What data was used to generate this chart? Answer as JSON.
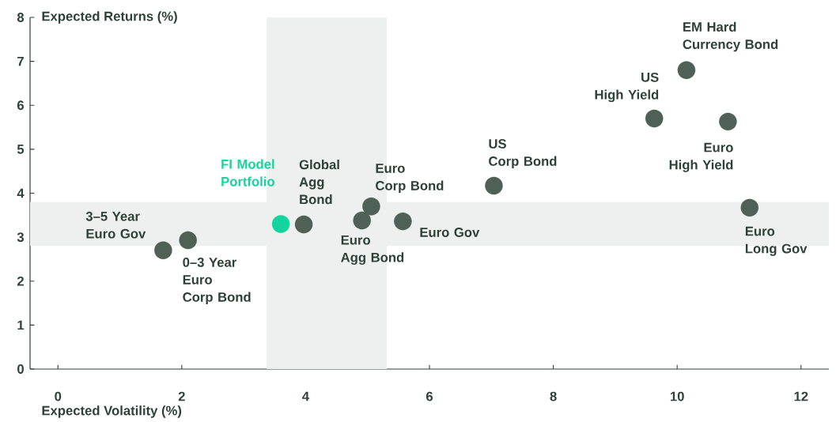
{
  "chart_data": {
    "type": "scatter",
    "xlabel": "Expected Volatility (%)",
    "ylabel": "Expected Returns (%)",
    "xlim": [
      -0.45,
      12.45
    ],
    "ylim": [
      0,
      8
    ],
    "xticks": [
      0,
      2,
      4,
      6,
      8,
      10,
      12
    ],
    "yticks": [
      0,
      1,
      2,
      3,
      4,
      5,
      6,
      7,
      8
    ],
    "marker": "circle",
    "series": [
      {
        "color": "#4f6157",
        "x": [
          1.7,
          2.1,
          3.97,
          4.91,
          5.06,
          5.57,
          7.04,
          9.63,
          10.15,
          10.82,
          11.17
        ],
        "values": [
          2.7,
          2.93,
          3.29,
          3.38,
          3.7,
          3.36,
          4.17,
          5.7,
          6.8,
          5.63,
          3.67
        ]
      },
      {
        "name": "FI Model Portfolio",
        "color": "#14d49e",
        "x": [
          3.6
        ],
        "values": [
          3.3
        ]
      }
    ],
    "bands": [
      {
        "axis": "x",
        "from": 3.37,
        "to": 5.31,
        "color": "#eef0ef"
      },
      {
        "axis": "y",
        "from": 2.8,
        "to": 3.8,
        "color": "#eef0ef"
      }
    ],
    "annotations": [
      {
        "text": "3–5 Year Euro Gov",
        "x": 1.7,
        "y": 2.7
      },
      {
        "text": "0–3 Year Euro Corp Bond",
        "x": 2.1,
        "y": 2.93
      },
      {
        "text": "Global Agg Bond",
        "x": 3.97,
        "y": 3.29
      },
      {
        "text": "Euro Agg Bond",
        "x": 4.91,
        "y": 3.38
      },
      {
        "text": "Euro Corp Bond",
        "x": 5.06,
        "y": 3.7
      },
      {
        "text": "Euro Gov",
        "x": 5.57,
        "y": 3.36
      },
      {
        "text": "US Corp Bond",
        "x": 7.04,
        "y": 4.17
      },
      {
        "text": "US High Yield",
        "x": 9.63,
        "y": 5.7
      },
      {
        "text": "EM Hard Currency Bond",
        "x": 10.15,
        "y": 6.8
      },
      {
        "text": "Euro High Yield",
        "x": 10.82,
        "y": 5.63
      },
      {
        "text": "Euro Long Gov",
        "x": 11.17,
        "y": 3.67
      }
    ]
  }
}
